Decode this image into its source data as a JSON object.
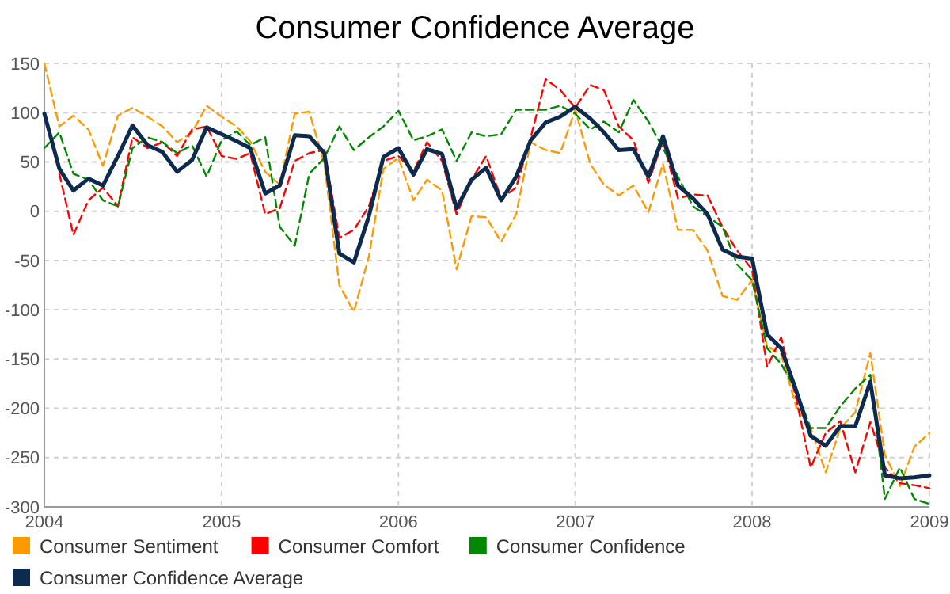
{
  "chart_data": {
    "type": "line",
    "title": "Consumer Confidence Average",
    "x": [
      "2004-01",
      "2004-02",
      "2004-03",
      "2004-04",
      "2004-05",
      "2004-06",
      "2004-07",
      "2004-08",
      "2004-09",
      "2004-10",
      "2004-11",
      "2004-12",
      "2005-01",
      "2005-02",
      "2005-03",
      "2005-04",
      "2005-05",
      "2005-06",
      "2005-07",
      "2005-08",
      "2005-09",
      "2005-10",
      "2005-11",
      "2005-12",
      "2006-01",
      "2006-02",
      "2006-03",
      "2006-04",
      "2006-05",
      "2006-06",
      "2006-07",
      "2006-08",
      "2006-09",
      "2006-10",
      "2006-11",
      "2006-12",
      "2007-01",
      "2007-02",
      "2007-03",
      "2007-04",
      "2007-05",
      "2007-06",
      "2007-07",
      "2007-08",
      "2007-09",
      "2007-10",
      "2007-11",
      "2007-12",
      "2008-01",
      "2008-02",
      "2008-03",
      "2008-04",
      "2008-05",
      "2008-06",
      "2008-07",
      "2008-08",
      "2008-09",
      "2008-10",
      "2008-11",
      "2008-12",
      "2009-01"
    ],
    "xlim": [
      "2004-01",
      "2009-01"
    ],
    "xticks": [
      {
        "value": "2004-01",
        "label": "2004"
      },
      {
        "value": "2005-01",
        "label": "2005"
      },
      {
        "value": "2006-01",
        "label": "2006"
      },
      {
        "value": "2007-01",
        "label": "2007"
      },
      {
        "value": "2008-01",
        "label": "2008"
      },
      {
        "value": "2009-01",
        "label": "2009"
      }
    ],
    "ylim": [
      -300,
      150
    ],
    "yticks": [
      -300,
      -250,
      -200,
      -150,
      -100,
      -50,
      0,
      50,
      100,
      150
    ],
    "grid": true,
    "legend": "bottom",
    "series": [
      {
        "name": "Consumer Sentiment",
        "color": "#ff9900",
        "line_style": "dashed",
        "values": [
          150,
          86,
          97,
          83,
          46,
          97,
          105,
          96,
          86,
          70,
          80,
          107,
          96,
          86,
          71,
          40,
          27,
          99,
          101,
          48,
          -75,
          -102,
          -46,
          43,
          54,
          11,
          32,
          21,
          -59,
          -5,
          -6,
          -31,
          -3,
          70,
          62,
          59,
          103,
          48,
          27,
          16,
          26,
          -1,
          48,
          -19,
          -19,
          -40,
          -86,
          -90,
          -70,
          -137,
          -145,
          -198,
          -220,
          -265,
          -220,
          -204,
          -144,
          -247,
          -279,
          -239,
          -225
        ]
      },
      {
        "name": "Consumer Comfort",
        "color": "#ff0000",
        "line_style": "dashed",
        "values": [
          null,
          38,
          -24,
          11,
          24,
          5,
          75,
          64,
          70,
          56,
          83,
          86,
          56,
          53,
          59,
          -3,
          3,
          51,
          59,
          62,
          -27,
          -19,
          5,
          51,
          56,
          40,
          70,
          51,
          -3,
          32,
          56,
          13,
          24,
          75,
          134,
          123,
          105,
          128,
          123,
          86,
          72,
          29,
          72,
          13,
          17,
          16,
          -16,
          -40,
          -59,
          -158,
          -128,
          -190,
          -260,
          -225,
          -213,
          -265,
          -214,
          -260,
          -276,
          -278,
          -281
        ]
      },
      {
        "name": "Consumer Confidence",
        "color": "#008800",
        "line_style": "dashed",
        "values": [
          64,
          80,
          38,
          32,
          11,
          5,
          64,
          75,
          70,
          59,
          67,
          35,
          72,
          81,
          67,
          75,
          -16,
          -35,
          38,
          54,
          86,
          62,
          75,
          86,
          102,
          72,
          76,
          83,
          51,
          80,
          76,
          78,
          103,
          103,
          103,
          107,
          99,
          83,
          91,
          80,
          113,
          91,
          64,
          35,
          5,
          -5,
          -16,
          -54,
          -70,
          -139,
          -155,
          -182,
          -220,
          -220,
          -198,
          -180,
          -166,
          -292,
          -260,
          -292,
          -297
        ]
      },
      {
        "name": "Consumer Confidence Average",
        "color": "#0d2a4f",
        "line_style": "solid",
        "values": [
          99,
          43,
          21,
          33,
          26,
          56,
          87,
          67,
          60,
          40,
          52,
          85,
          78,
          71,
          64,
          18,
          26,
          77,
          76,
          59,
          -43,
          -52,
          -5,
          55,
          64,
          37,
          63,
          58,
          3,
          32,
          44,
          11,
          35,
          72,
          90,
          96,
          106,
          94,
          80,
          62,
          63,
          35,
          76,
          26,
          13,
          -3,
          -39,
          -46,
          -48,
          -125,
          -139,
          -182,
          -228,
          -238,
          -218,
          -218,
          -173,
          -268,
          -271,
          -270,
          -268
        ]
      }
    ]
  }
}
